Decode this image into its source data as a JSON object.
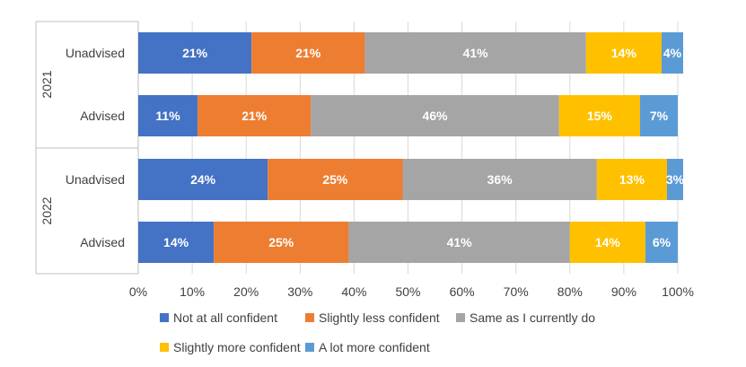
{
  "chart_data": {
    "type": "bar",
    "orientation": "horizontal",
    "stacked": "percent",
    "groups": [
      {
        "label": "2021",
        "categories": [
          "Unadvised",
          "Advised"
        ]
      },
      {
        "label": "2022",
        "categories": [
          "Unadvised",
          "Advised"
        ]
      }
    ],
    "series": [
      {
        "name": "Not at all confident",
        "color": "#4472C4",
        "values": [
          21,
          11,
          24,
          14
        ]
      },
      {
        "name": "Slightly less confident",
        "color": "#ED7D31",
        "values": [
          21,
          21,
          25,
          25
        ]
      },
      {
        "name": "Same as I currently do",
        "color": "#A5A5A5",
        "values": [
          41,
          46,
          36,
          41
        ]
      },
      {
        "name": "Slightly more confident",
        "color": "#FFC000",
        "values": [
          14,
          15,
          13,
          14
        ]
      },
      {
        "name": "A lot more confident",
        "color": "#5B9BD5",
        "values": [
          4,
          7,
          3,
          6
        ]
      }
    ],
    "xlim": [
      0,
      100
    ],
    "xticks": [
      "0%",
      "10%",
      "20%",
      "30%",
      "40%",
      "50%",
      "60%",
      "70%",
      "80%",
      "90%",
      "100%"
    ],
    "grid": true,
    "legend_position": "bottom",
    "label_suffix": "%"
  }
}
